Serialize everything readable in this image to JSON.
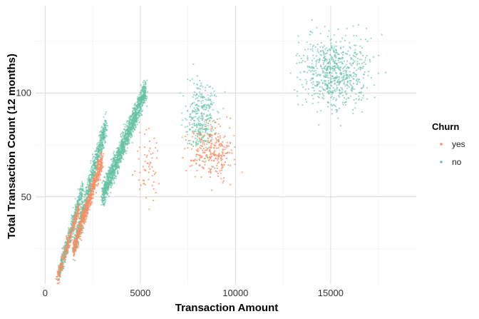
{
  "chart_data": {
    "type": "scatter",
    "title": "",
    "xlabel": "Transaction Amount",
    "ylabel": "Total Transaction Count (12 months)",
    "xlim": [
      -500,
      19500
    ],
    "ylim": [
      8,
      142
    ],
    "x_ticks": [
      0,
      5000,
      10000,
      15000
    ],
    "x_tick_labels": [
      "0",
      "5000",
      "10000",
      "15000"
    ],
    "y_ticks": [
      50,
      100
    ],
    "y_tick_labels": [
      "50",
      "100"
    ],
    "x_minor_ticks": [
      2500,
      7500,
      12500,
      17500
    ],
    "y_minor_ticks": [
      25,
      75,
      125
    ],
    "grid": true,
    "legend": {
      "title": "Churn",
      "position": "right",
      "entries": [
        "yes",
        "no"
      ]
    },
    "series": [
      {
        "name": "no",
        "color": "#66c2a5",
        "clusters": [
          {
            "x_range": [
              700,
              2000
            ],
            "y_range": [
              12,
              55
            ],
            "trend": "rising",
            "n": 500
          },
          {
            "x_range": [
              1500,
              3200
            ],
            "y_range": [
              25,
              85
            ],
            "trend": "rising",
            "n": 900
          },
          {
            "x_range": [
              3000,
              5300
            ],
            "y_range": [
              50,
              102
            ],
            "trend": "rising",
            "n": 1500
          },
          {
            "x_range": [
              7000,
              9500
            ],
            "y_range": [
              60,
              115
            ],
            "trend": "flat",
            "n": 350
          },
          {
            "x_range": [
              12500,
              18000
            ],
            "y_range": [
              82,
              137
            ],
            "trend": "flat",
            "n": 700
          }
        ]
      },
      {
        "name": "yes",
        "color": "#fc8d62",
        "clusters": [
          {
            "x_range": [
              600,
              1800
            ],
            "y_range": [
              10,
              45
            ],
            "trend": "rising",
            "n": 250
          },
          {
            "x_range": [
              1500,
              3000
            ],
            "y_range": [
              25,
              68
            ],
            "trend": "rising",
            "n": 600
          },
          {
            "x_range": [
              4500,
              6200
            ],
            "y_range": [
              38,
              92
            ],
            "trend": "flat",
            "n": 60
          },
          {
            "x_range": [
              7000,
              10500
            ],
            "y_range": [
              50,
              92
            ],
            "trend": "flat",
            "n": 260
          }
        ]
      }
    ]
  }
}
